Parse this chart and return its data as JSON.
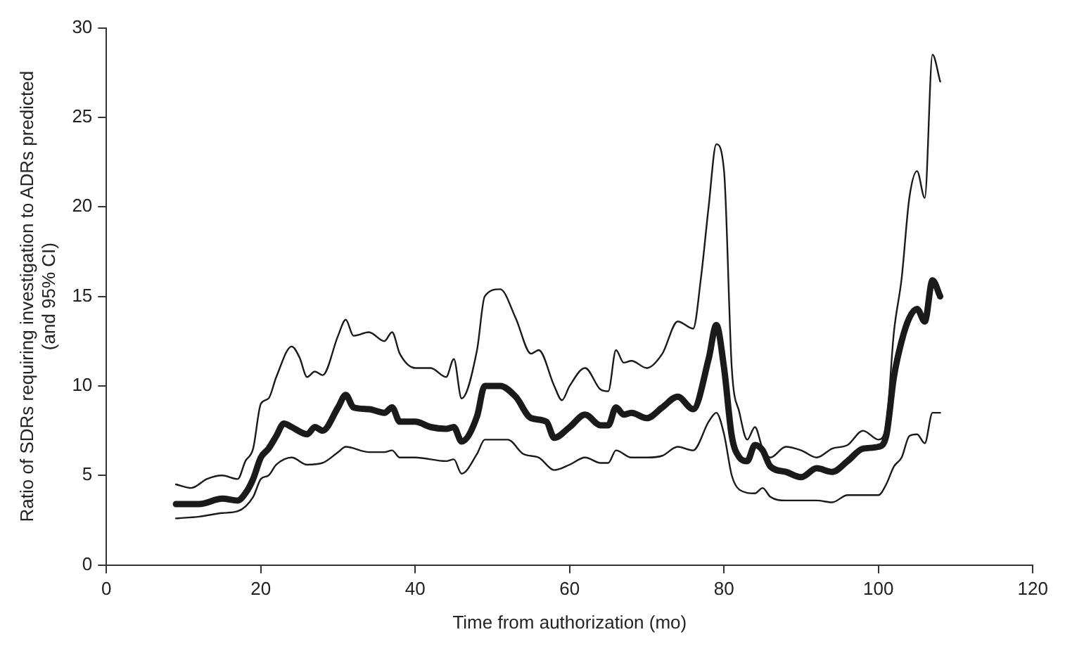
{
  "chart_data": {
    "type": "line",
    "xlabel": "Time from authorization (mo)",
    "ylabel": "Ratio of SDRs requiring investigation to ADRs predicted (and 95% CI)",
    "xlim": [
      0,
      120
    ],
    "xticks": [
      0,
      20,
      40,
      60,
      80,
      100,
      120
    ],
    "ylim": [
      0,
      30
    ],
    "yticks": [
      0,
      5,
      10,
      15,
      20,
      25,
      30
    ],
    "grid": false,
    "legend": false,
    "marker": "none",
    "line_style": "solid",
    "series": [
      {
        "color": "#1a1a1a",
        "x": [
          9,
          12,
          15,
          17,
          18,
          19,
          20,
          21,
          22,
          23,
          24,
          26,
          27,
          28,
          30,
          31,
          32,
          34,
          36,
          37,
          38,
          40,
          42,
          44,
          45,
          46,
          48,
          49,
          51,
          53,
          55,
          57,
          58,
          60,
          62,
          64,
          65,
          66,
          67,
          68,
          70,
          72,
          74,
          76,
          78,
          79,
          80,
          81,
          82,
          83,
          84,
          85,
          86,
          88,
          90,
          92,
          94,
          96,
          98,
          100,
          101,
          102,
          103,
          104,
          105,
          106,
          107,
          108
        ],
        "values": [
          3.4,
          3.4,
          3.7,
          3.6,
          4.0,
          4.8,
          6.0,
          6.5,
          7.2,
          7.9,
          7.7,
          7.3,
          7.7,
          7.5,
          8.8,
          9.5,
          8.8,
          8.7,
          8.5,
          8.8,
          8.0,
          8.0,
          7.7,
          7.6,
          7.7,
          6.9,
          8.3,
          10.0,
          10.0,
          9.4,
          8.2,
          8.0,
          7.1,
          7.7,
          8.4,
          7.8,
          7.8,
          8.8,
          8.4,
          8.5,
          8.2,
          8.8,
          9.4,
          8.7,
          11.5,
          13.4,
          11.0,
          7.2,
          6.0,
          5.8,
          6.7,
          6.4,
          5.5,
          5.2,
          4.9,
          5.4,
          5.2,
          5.8,
          6.5,
          6.6,
          7.2,
          10.5,
          12.5,
          13.8,
          14.3,
          13.6,
          15.9,
          15.0
        ]
      },
      {
        "color": "#1a1a1a",
        "x": [
          9,
          11,
          13,
          15,
          17,
          18,
          19,
          20,
          21,
          22,
          24,
          25,
          26,
          27,
          28,
          30,
          31,
          32,
          34,
          36,
          37,
          38,
          40,
          42,
          44,
          45,
          46,
          48,
          49,
          51,
          53,
          55,
          56,
          58,
          59,
          60,
          62,
          64,
          65,
          66,
          67,
          68,
          70,
          72,
          74,
          76,
          77,
          78,
          79,
          80,
          81,
          82,
          83,
          84,
          85,
          86,
          88,
          90,
          92,
          94,
          96,
          98,
          100,
          101,
          102,
          103,
          104,
          105,
          106,
          107,
          108
        ],
        "values": [
          4.5,
          4.3,
          4.8,
          5.0,
          4.8,
          5.8,
          6.5,
          9.0,
          9.3,
          10.5,
          12.2,
          11.6,
          10.5,
          10.8,
          10.6,
          12.8,
          13.7,
          12.8,
          13.0,
          12.5,
          13.0,
          11.8,
          11.0,
          11.0,
          10.5,
          11.5,
          9.3,
          12.0,
          15.0,
          15.4,
          13.8,
          11.8,
          12.0,
          10.0,
          9.2,
          10.0,
          11.0,
          9.8,
          9.7,
          12.0,
          11.3,
          11.4,
          11.0,
          11.8,
          13.6,
          13.2,
          16.0,
          20.0,
          23.5,
          22.0,
          11.0,
          8.5,
          7.0,
          7.7,
          6.5,
          6.0,
          6.6,
          6.4,
          6.0,
          6.5,
          6.7,
          7.5,
          7.0,
          7.8,
          13.0,
          16.0,
          20.5,
          22.0,
          20.5,
          28.5,
          27.0
        ]
      },
      {
        "color": "#1a1a1a",
        "x": [
          9,
          12,
          15,
          17,
          19,
          20,
          21,
          22,
          24,
          26,
          28,
          30,
          31,
          34,
          36,
          37,
          38,
          40,
          44,
          45,
          46,
          48,
          49,
          52,
          54,
          56,
          58,
          60,
          62,
          64,
          65,
          66,
          68,
          70,
          72,
          74,
          76,
          78,
          79,
          80,
          81,
          82,
          84,
          85,
          86,
          88,
          92,
          94,
          96,
          98,
          100,
          101,
          102,
          103,
          104,
          105,
          106,
          107,
          108
        ],
        "values": [
          2.6,
          2.7,
          2.9,
          3.0,
          3.8,
          4.8,
          5.0,
          5.6,
          6.0,
          5.6,
          5.7,
          6.3,
          6.6,
          6.3,
          6.3,
          6.4,
          6.0,
          6.0,
          5.8,
          5.9,
          5.1,
          6.2,
          7.0,
          7.0,
          6.2,
          6.0,
          5.3,
          5.6,
          6.0,
          5.7,
          5.7,
          6.4,
          6.0,
          6.0,
          6.1,
          6.6,
          6.4,
          8.0,
          8.5,
          7.3,
          5.0,
          4.2,
          4.0,
          4.3,
          3.8,
          3.6,
          3.6,
          3.5,
          3.9,
          3.9,
          3.9,
          4.5,
          5.5,
          6.0,
          7.2,
          7.3,
          6.8,
          8.5,
          8.5
        ]
      }
    ]
  }
}
